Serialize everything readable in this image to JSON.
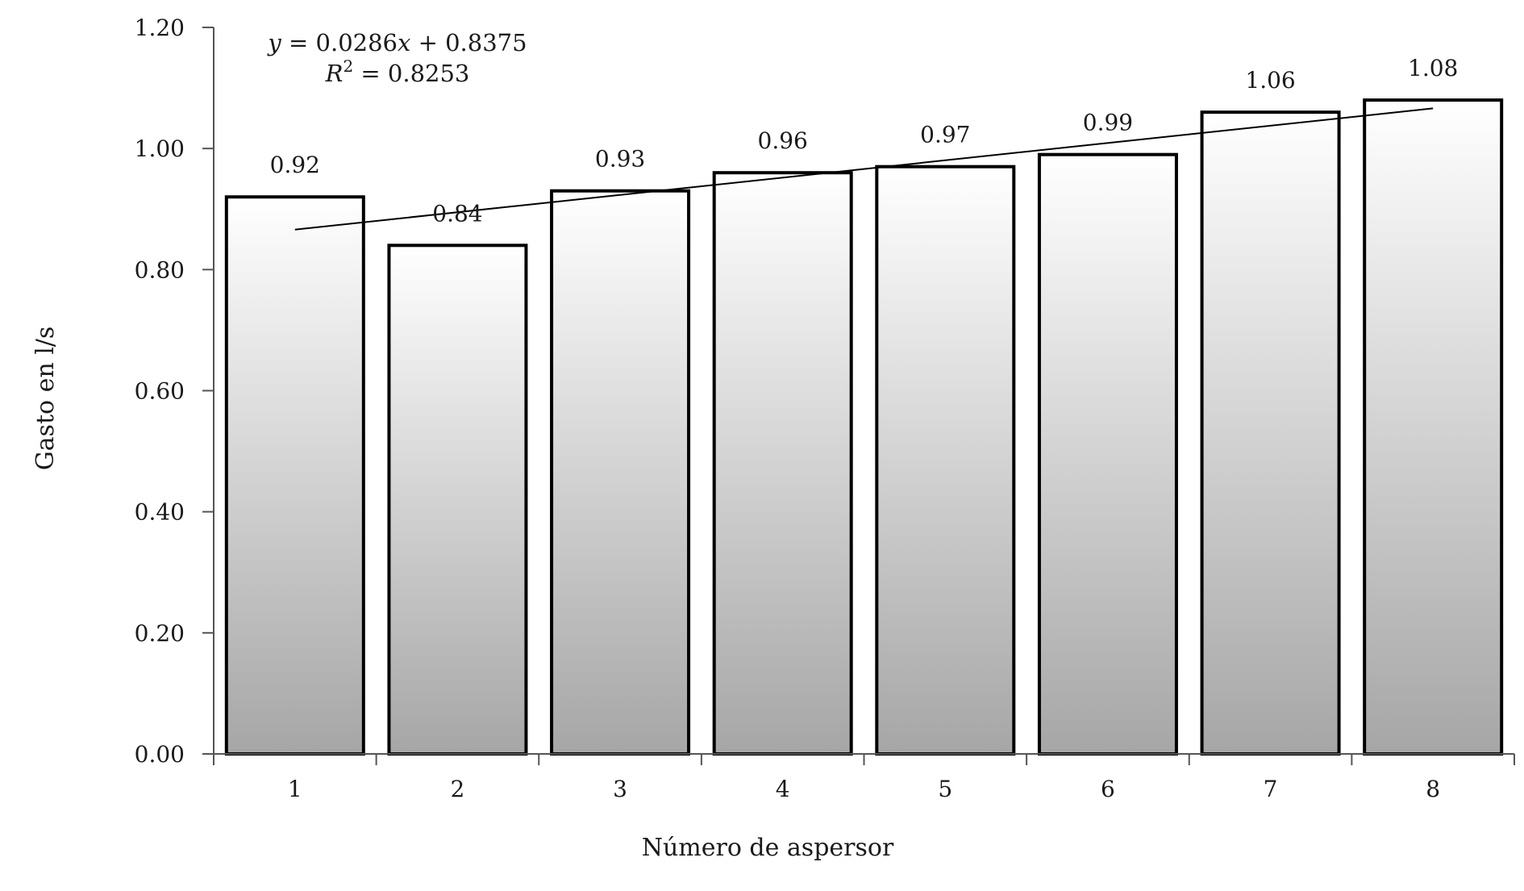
{
  "chart_data": {
    "type": "bar",
    "title": "",
    "xlabel": "Número de aspersor",
    "ylabel": "Gasto en l/s",
    "categories": [
      "1",
      "2",
      "3",
      "4",
      "5",
      "6",
      "7",
      "8"
    ],
    "values": [
      0.92,
      0.84,
      0.93,
      0.96,
      0.97,
      0.99,
      1.06,
      1.08
    ],
    "data_labels": [
      "0.92",
      "0.84",
      "0.93",
      "0.96",
      "0.97",
      "0.99",
      "1.06",
      "1.08"
    ],
    "ylim": [
      0,
      1.2
    ],
    "yticks": [
      0,
      0.2,
      0.4,
      0.6,
      0.8,
      1.0,
      1.2
    ],
    "ytick_labels": [
      "0.00",
      "0.20",
      "0.40",
      "0.60",
      "0.80",
      "1.00",
      "1.20"
    ],
    "grid": false,
    "legend": "none",
    "trendline": {
      "type": "linear",
      "slope": 0.0286,
      "intercept": 0.8375,
      "equation_label": "y = 0.0286x + 0.8375",
      "r2_label": "R2 = 0.8253"
    },
    "colors": {
      "bar_top": "#ffffff",
      "bar_bottom": "#a6a6a6",
      "bar_stroke": "#000000",
      "axis": "#555555",
      "trendline": "#000000"
    }
  }
}
